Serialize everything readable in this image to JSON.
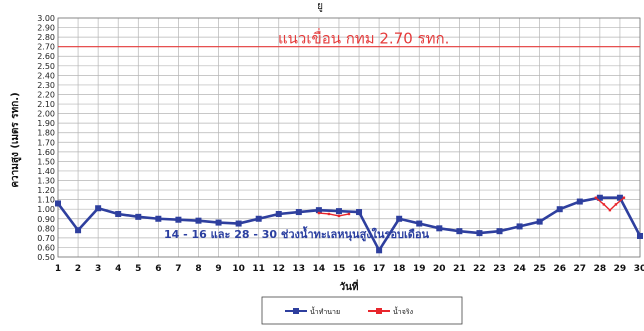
{
  "chart_data": {
    "type": "line",
    "title": "",
    "title_fragment": "ยู",
    "xlabel": "วันที่",
    "ylabel": "ความสูง (เมตร รทก.)",
    "x": [
      1,
      2,
      3,
      4,
      5,
      6,
      7,
      8,
      9,
      10,
      11,
      12,
      13,
      14,
      15,
      16,
      17,
      18,
      19,
      20,
      21,
      22,
      23,
      24,
      25,
      26,
      27,
      28,
      29,
      30
    ],
    "xlim": [
      1,
      30
    ],
    "ylim": [
      0.5,
      3.0
    ],
    "yticks": [
      "0.50",
      "0.60",
      "0.70",
      "0.80",
      "0.90",
      "1.00",
      "1.10",
      "1.20",
      "1.30",
      "1.40",
      "1.50",
      "1.60",
      "1.70",
      "1.80",
      "1.90",
      "2.00",
      "2.10",
      "2.20",
      "2.30",
      "2.40",
      "2.50",
      "2.60",
      "2.70",
      "2.80",
      "2.90",
      "3.00"
    ],
    "grid": true,
    "legend_position": "bottom",
    "series": [
      {
        "name": "น้ำทำนาย",
        "color": "#2e3f9e",
        "marker": "square",
        "values": [
          1.06,
          0.78,
          1.01,
          0.95,
          0.92,
          0.9,
          0.89,
          0.88,
          0.86,
          0.85,
          0.9,
          0.95,
          0.97,
          0.99,
          0.98,
          0.97,
          0.57,
          0.9,
          0.85,
          0.8,
          0.77,
          0.75,
          0.77,
          0.82,
          0.87,
          1.0,
          1.08,
          1.12,
          1.12,
          0.72
        ]
      },
      {
        "name": "น้ำจริง",
        "color": "#e8262c",
        "marker": "square",
        "points": [
          [
            14,
            0.96
          ],
          [
            14.5,
            0.95
          ],
          [
            15,
            0.93
          ],
          [
            15.5,
            0.95
          ],
          [
            27.8,
            1.12
          ],
          [
            28.2,
            1.05
          ],
          [
            28.5,
            0.99
          ],
          [
            28.8,
            1.05
          ],
          [
            29.2,
            1.12
          ]
        ]
      }
    ],
    "reference_line": {
      "value": 2.7,
      "label": "แนวเขื่อน กทม 2.70 รทก.",
      "color": "#e53b3b"
    },
    "annotation": "14 - 16 และ 28 - 30 ช่วงน้ำทะเลหนุนสูงในรอบเดือน"
  }
}
